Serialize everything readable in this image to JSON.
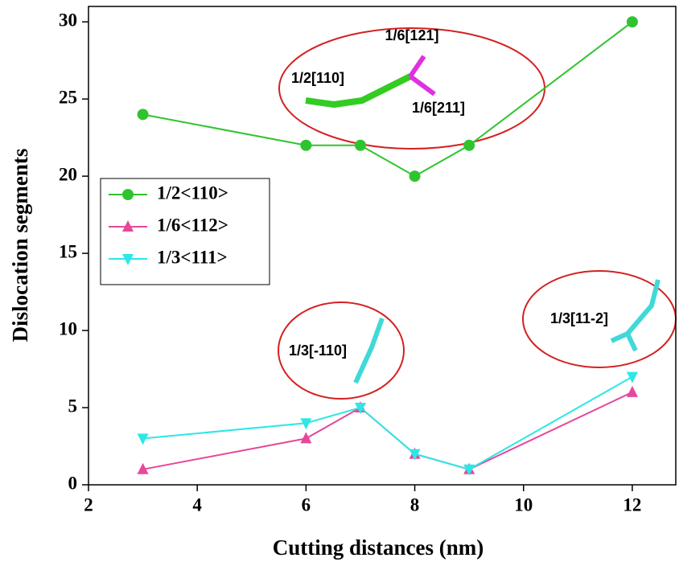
{
  "chart_data": {
    "type": "line",
    "x_label": "Cutting distances (nm)",
    "y_label": "Dislocation segments",
    "x": [
      3,
      6,
      7,
      8,
      9,
      12
    ],
    "series": [
      {
        "name": "1/2<110>",
        "color": "#2fc42f",
        "marker": "circle",
        "values": [
          24,
          22,
          22,
          20,
          22,
          30
        ]
      },
      {
        "name": "1/6<112>",
        "color": "#e6489a",
        "marker": "triangle-up",
        "values": [
          1,
          3,
          5,
          2,
          1,
          6
        ]
      },
      {
        "name": "1/3<111>",
        "color": "#2ee6e6",
        "marker": "triangle-down",
        "values": [
          3,
          4,
          5,
          2,
          1,
          7
        ]
      }
    ],
    "xlim": [
      2,
      12.8
    ],
    "xticks": [
      2,
      4,
      6,
      8,
      10,
      12
    ],
    "ylim": [
      0,
      31
    ],
    "yticks": [
      0,
      5,
      10,
      15,
      20,
      25,
      30
    ],
    "legend": "left",
    "annotations": [
      "1/6[121]",
      "1/2[110]",
      "1/6[211]",
      "1/3[-110]",
      "1/3[11-2]"
    ]
  }
}
